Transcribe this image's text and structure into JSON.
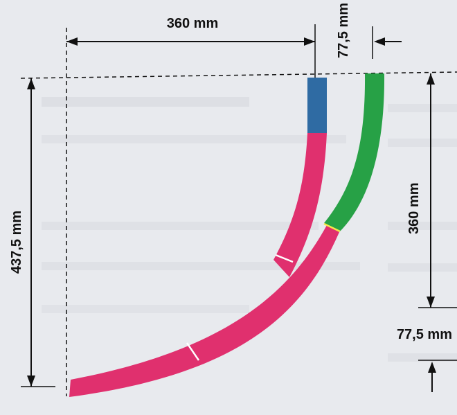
{
  "dimensions": {
    "top_width": "360 mm",
    "top_gap": "77,5 mm",
    "left_height": "437,5 mm",
    "right_height": "360 mm",
    "right_gap": "77,5 mm"
  },
  "colors": {
    "background": "#e8eaee",
    "pink_track": "#e0306e",
    "green_track": "#27a146",
    "blue_track": "#2f6ba3",
    "dimension_line": "#111111",
    "joint": "#ffffff"
  }
}
